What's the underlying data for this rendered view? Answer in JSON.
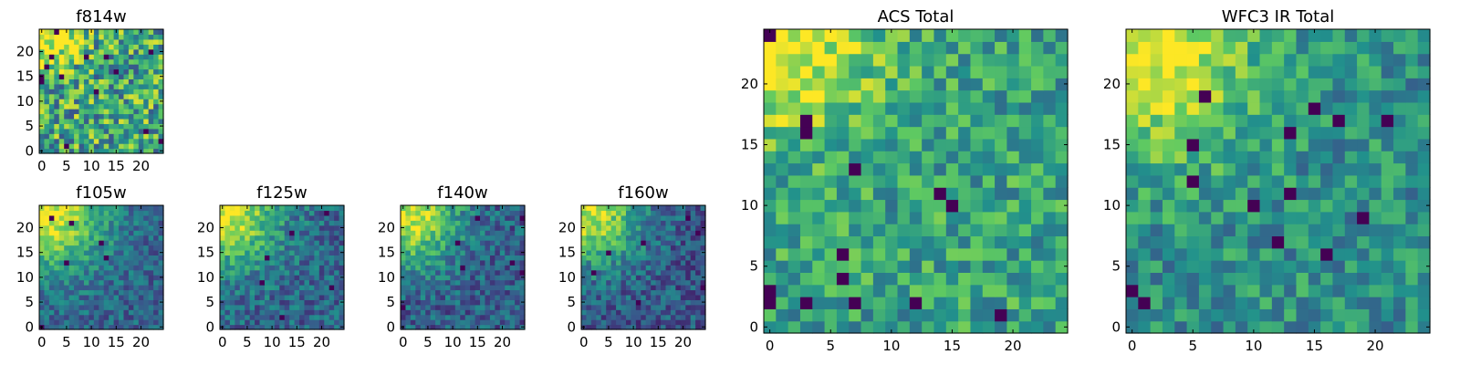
{
  "figure": {
    "background": "#ffffff"
  },
  "colormap": {
    "name": "viridis",
    "stops": [
      "#440154",
      "#3b528b",
      "#21918c",
      "#5ec962",
      "#fde725"
    ]
  },
  "chart_data": [
    {
      "id": "f814w",
      "type": "heatmap",
      "title": "f814w",
      "grid_size": 25,
      "xticks": [
        "0",
        "5",
        "10",
        "15",
        "20"
      ],
      "yticks": [
        "0",
        "5",
        "10",
        "15",
        "20"
      ],
      "xlim": [
        0,
        25
      ],
      "ylim": [
        0,
        25
      ],
      "mean": 0.6,
      "spread": 0.35,
      "peak": 0.45,
      "peak_width": 4,
      "dark_pixels": 14,
      "seed": 11
    },
    {
      "id": "f105w",
      "type": "heatmap",
      "title": "f105w",
      "grid_size": 25,
      "xticks": [
        "0",
        "5",
        "10",
        "15",
        "20"
      ],
      "yticks": [
        "0",
        "5",
        "10",
        "15",
        "20"
      ],
      "xlim": [
        0,
        25
      ],
      "ylim": [
        0,
        25
      ],
      "mean": 0.32,
      "spread": 0.16,
      "peak": 0.62,
      "peak_width": 8,
      "dark_pixels": 6,
      "seed": 23
    },
    {
      "id": "f125w",
      "type": "heatmap",
      "title": "f125w",
      "grid_size": 25,
      "xticks": [
        "0",
        "5",
        "10",
        "15",
        "20"
      ],
      "yticks": [
        "0",
        "5",
        "10",
        "15",
        "20"
      ],
      "xlim": [
        0,
        25
      ],
      "ylim": [
        0,
        25
      ],
      "mean": 0.33,
      "spread": 0.18,
      "peak": 0.6,
      "peak_width": 7,
      "dark_pixels": 6,
      "seed": 37
    },
    {
      "id": "f140w",
      "type": "heatmap",
      "title": "f140w",
      "grid_size": 25,
      "xticks": [
        "0",
        "5",
        "10",
        "15",
        "20"
      ],
      "yticks": [
        "0",
        "5",
        "10",
        "15",
        "20"
      ],
      "xlim": [
        0,
        25
      ],
      "ylim": [
        0,
        25
      ],
      "mean": 0.3,
      "spread": 0.18,
      "peak": 0.62,
      "peak_width": 7,
      "dark_pixels": 7,
      "seed": 41
    },
    {
      "id": "f160w",
      "type": "heatmap",
      "title": "f160w",
      "grid_size": 25,
      "xticks": [
        "0",
        "5",
        "10",
        "15",
        "20"
      ],
      "yticks": [
        "0",
        "5",
        "10",
        "15",
        "20"
      ],
      "xlim": [
        0,
        25
      ],
      "ylim": [
        0,
        25
      ],
      "mean": 0.28,
      "spread": 0.18,
      "peak": 0.62,
      "peak_width": 7,
      "dark_pixels": 8,
      "seed": 53
    },
    {
      "id": "acs-total",
      "type": "heatmap",
      "title": "ACS Total",
      "grid_size": 25,
      "xticks": [
        "0",
        "5",
        "10",
        "15",
        "20"
      ],
      "yticks": [
        "0",
        "5",
        "10",
        "15",
        "20"
      ],
      "xlim": [
        0,
        25
      ],
      "ylim": [
        0,
        25
      ],
      "mean": 0.58,
      "spread": 0.22,
      "peak": 0.42,
      "peak_width": 5,
      "dark_pixels": 14,
      "seed": 67
    },
    {
      "id": "wfc3-ir-total",
      "type": "heatmap",
      "title": "WFC3 IR Total",
      "grid_size": 25,
      "xticks": [
        "0",
        "5",
        "10",
        "15",
        "20"
      ],
      "yticks": [
        "0",
        "5",
        "10",
        "15",
        "20"
      ],
      "xlim": [
        0,
        25
      ],
      "ylim": [
        0,
        25
      ],
      "mean": 0.5,
      "spread": 0.2,
      "peak": 0.5,
      "peak_width": 6,
      "dark_pixels": 14,
      "seed": 79
    }
  ]
}
